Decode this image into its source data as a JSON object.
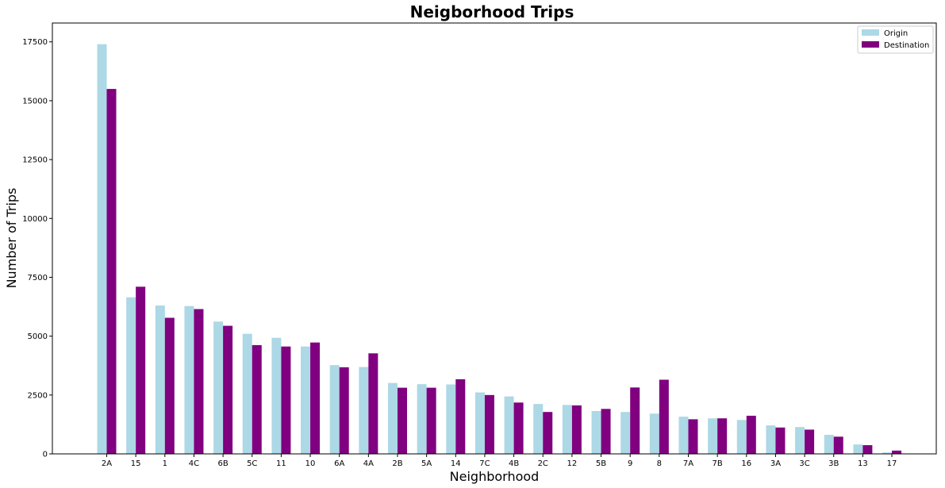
{
  "chart_data": {
    "type": "bar",
    "title": "Neigborhood Trips",
    "xlabel": "Neighborhood",
    "ylabel": "Number of Trips",
    "ylim": [
      0,
      18300
    ],
    "yticks": [
      0,
      2500,
      5000,
      7500,
      10000,
      12500,
      15000,
      17500
    ],
    "grid": false,
    "legend_position": "top-right",
    "categories": [
      "2A",
      "15",
      "1",
      "4C",
      "6B",
      "5C",
      "11",
      "10",
      "6A",
      "4A",
      "2B",
      "5A",
      "14",
      "7C",
      "4B",
      "2C",
      "12",
      "5B",
      "9",
      "8",
      "7A",
      "7B",
      "16",
      "3A",
      "3C",
      "3B",
      "13",
      "17"
    ],
    "series": [
      {
        "name": "Origin",
        "color": "#add8e6",
        "values": [
          17400,
          6650,
          6300,
          6280,
          5620,
          5100,
          4930,
          4560,
          3770,
          3690,
          3010,
          2960,
          2950,
          2610,
          2440,
          2120,
          2080,
          1820,
          1780,
          1710,
          1580,
          1510,
          1440,
          1210,
          1140,
          810,
          400,
          60
        ]
      },
      {
        "name": "Destination",
        "color": "#800080",
        "values": [
          15500,
          7100,
          5780,
          6150,
          5440,
          4620,
          4560,
          4730,
          3680,
          4270,
          2810,
          2810,
          3170,
          2500,
          2180,
          1780,
          2060,
          1910,
          2820,
          3150,
          1470,
          1510,
          1620,
          1120,
          1030,
          730,
          370,
          140
        ]
      }
    ]
  }
}
